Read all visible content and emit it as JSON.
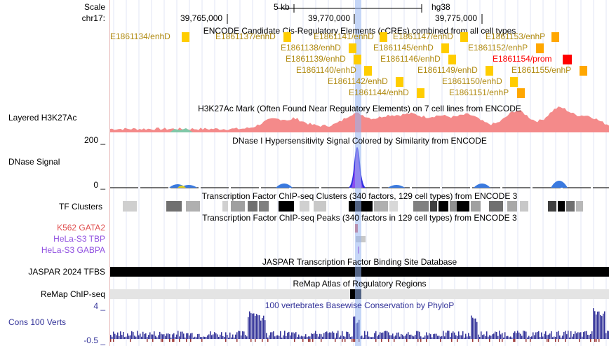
{
  "scale": {
    "label": "Scale",
    "value": "5 kb",
    "assembly": "hg38"
  },
  "chrom": {
    "label": "chr17:",
    "ticks": [
      "39,765,000",
      "39,770,000",
      "39,775,000"
    ]
  },
  "tracks": {
    "ccres": {
      "title": "ENCODE Candidate Cis-Regulatory Elements (cCREs) combined from all cell types",
      "colors": {
        "enhD": "#ffcd00",
        "enhP": "#ffa700",
        "prom": "#ff0000"
      },
      "items": [
        {
          "label": "E1861134/enhD",
          "type": "enhD"
        },
        {
          "label": "E1861137/enhD",
          "type": "enhD"
        },
        {
          "label": "E1861141/enhD",
          "type": "enhD"
        },
        {
          "label": "E1861147/enhD",
          "type": "enhD"
        },
        {
          "label": "E1861153/enhP",
          "type": "enhP"
        },
        {
          "label": "E1861138/enhD",
          "type": "enhD"
        },
        {
          "label": "E1861145/enhD",
          "type": "enhD"
        },
        {
          "label": "E1861152/enhP",
          "type": "enhP"
        },
        {
          "label": "E1861139/enhD",
          "type": "enhD"
        },
        {
          "label": "E1861146/enhD",
          "type": "enhD"
        },
        {
          "label": "E1861154/prom",
          "type": "prom"
        },
        {
          "label": "E1861140/enhD",
          "type": "enhD"
        },
        {
          "label": "E1861149/enhD",
          "type": "enhD"
        },
        {
          "label": "E1861155/enhP",
          "type": "enhP"
        },
        {
          "label": "E1861142/enhD",
          "type": "enhD"
        },
        {
          "label": "E1861150/enhD",
          "type": "enhD"
        },
        {
          "label": "E1861144/enhD",
          "type": "enhD"
        },
        {
          "label": "E1861151/enhP",
          "type": "enhP"
        }
      ]
    },
    "h3k27ac": {
      "label": "Layered H3K27Ac",
      "title": "H3K27Ac Mark (Often Found Near Regulatory Elements) on 7 cell lines from ENCODE",
      "color": "#f08080"
    },
    "dnase": {
      "label": "DNase Signal",
      "title": "DNase I Hypersensitivity Signal Colored by Similarity from ENCODE",
      "max": "200 _",
      "min": "0 _"
    },
    "tf_clusters": {
      "label": "TF Clusters",
      "title": "Transcription Factor ChIP-seq Clusters (340 factors, 129 cell types) from ENCODE 3"
    },
    "tf_peaks": {
      "title": "Transcription Factor ChIP-seq Peaks (340 factors in 129 cell types) from ENCODE 3",
      "rows": [
        {
          "label": "K562 GATA2",
          "color": "#e05050"
        },
        {
          "label": "HeLa-S3 TBP",
          "color": "#9050e0"
        },
        {
          "label": "HeLa-S3 GABPA",
          "color": "#9050e0"
        }
      ]
    },
    "jaspar": {
      "label": "JASPAR 2024 TFBS",
      "title": "JASPAR Transcription Factor Binding Site Database"
    },
    "remap": {
      "label": "ReMap ChIP-seq",
      "title": "ReMap Atlas of Regulatory Regions"
    },
    "cons": {
      "label": "Cons 100 Verts",
      "title": "100 vertebrates Basewise Conservation by PhyloP",
      "max": "4 _",
      "min": "-0.5 _",
      "color": "#333399"
    }
  }
}
